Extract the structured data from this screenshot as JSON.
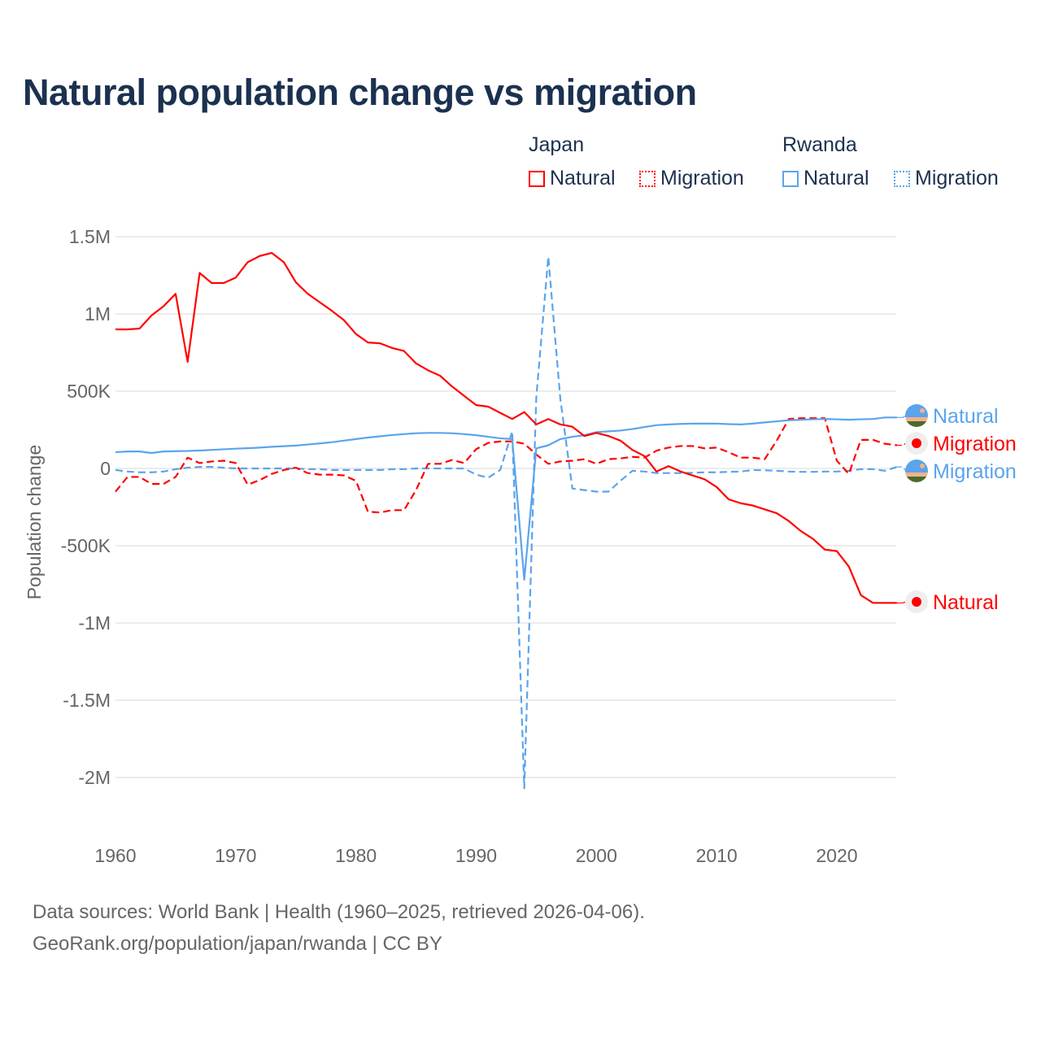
{
  "chart_data": {
    "type": "line",
    "title": "Natural population change vs migration",
    "ylabel": "Population change",
    "xlabel": "",
    "xlim": [
      1960,
      2025
    ],
    "ylim": [
      -2200000,
      1550000
    ],
    "x_ticks": [
      1960,
      1970,
      1980,
      1990,
      2000,
      2010,
      2020
    ],
    "x_tick_labels": [
      "1960",
      "1970",
      "1980",
      "1990",
      "2000",
      "2010",
      "2020"
    ],
    "y_ticks": [
      1500000,
      1000000,
      500000,
      0,
      -500000,
      -1000000,
      -1500000,
      -2000000
    ],
    "y_tick_labels": [
      "1.5M",
      "1M",
      "500K",
      "0",
      "-500K",
      "-1M",
      "-1.5M",
      "-2M"
    ],
    "grid": true,
    "legend_groups": [
      {
        "name": "Japan",
        "entries": [
          "Natural",
          "Migration"
        ]
      },
      {
        "name": "Rwanda",
        "entries": [
          "Natural",
          "Migration"
        ]
      }
    ],
    "legend_placement": "top-right",
    "x": [
      1960,
      1961,
      1962,
      1963,
      1964,
      1965,
      1966,
      1967,
      1968,
      1969,
      1970,
      1971,
      1972,
      1973,
      1974,
      1975,
      1976,
      1977,
      1978,
      1979,
      1980,
      1981,
      1982,
      1983,
      1984,
      1985,
      1986,
      1987,
      1988,
      1989,
      1990,
      1991,
      1992,
      1993,
      1994,
      1995,
      1996,
      1997,
      1998,
      1999,
      2000,
      2001,
      2002,
      2003,
      2004,
      2005,
      2006,
      2007,
      2008,
      2009,
      2010,
      2011,
      2012,
      2013,
      2014,
      2015,
      2016,
      2017,
      2018,
      2019,
      2020,
      2021,
      2022,
      2023,
      2024,
      2025
    ],
    "series": [
      {
        "name": "Japan Natural",
        "country": "Japan",
        "label": "Natural",
        "color": "#ff0000",
        "dash": false,
        "values": [
          900000,
          900000,
          905000,
          990000,
          1050000,
          1130000,
          690000,
          1265000,
          1200000,
          1200000,
          1235000,
          1335000,
          1375000,
          1395000,
          1335000,
          1205000,
          1130000,
          1075000,
          1020000,
          960000,
          870000,
          815000,
          810000,
          780000,
          760000,
          680000,
          635000,
          600000,
          530000,
          470000,
          410000,
          400000,
          360000,
          320000,
          365000,
          285000,
          320000,
          285000,
          270000,
          210000,
          230000,
          210000,
          180000,
          120000,
          80000,
          -20000,
          15000,
          -20000,
          -45000,
          -70000,
          -120000,
          -200000,
          -225000,
          -240000,
          -265000,
          -290000,
          -340000,
          -405000,
          -455000,
          -525000,
          -535000,
          -635000,
          -820000,
          -870000,
          -870000,
          -870000
        ]
      },
      {
        "name": "Japan Migration",
        "country": "Japan",
        "label": "Migration",
        "color": "#ff0000",
        "dash": true,
        "values": [
          -150000,
          -55000,
          -55000,
          -100000,
          -100000,
          -55000,
          70000,
          35000,
          45000,
          50000,
          35000,
          -105000,
          -75000,
          -35000,
          -10000,
          5000,
          -30000,
          -40000,
          -40000,
          -45000,
          -80000,
          -280000,
          -285000,
          -270000,
          -270000,
          -140000,
          30000,
          30000,
          55000,
          35000,
          125000,
          165000,
          175000,
          175000,
          160000,
          90000,
          30000,
          45000,
          50000,
          60000,
          30000,
          60000,
          65000,
          75000,
          70000,
          115000,
          135000,
          145000,
          145000,
          130000,
          135000,
          105000,
          70000,
          70000,
          60000,
          180000,
          320000,
          325000,
          325000,
          325000,
          50000,
          -35000,
          185000,
          185000,
          160000,
          150000
        ]
      },
      {
        "name": "Rwanda Natural",
        "country": "Rwanda",
        "label": "Natural",
        "color": "#5ba4ec",
        "dash": false,
        "values": [
          105000,
          110000,
          110000,
          100000,
          110000,
          112000,
          113000,
          116000,
          120000,
          124000,
          128000,
          131000,
          135000,
          140000,
          144000,
          148000,
          155000,
          162000,
          170000,
          180000,
          190000,
          200000,
          208000,
          216000,
          222000,
          228000,
          230000,
          230000,
          228000,
          222000,
          215000,
          205000,
          195000,
          190000,
          -720000,
          130000,
          150000,
          190000,
          205000,
          215000,
          235000,
          240000,
          245000,
          255000,
          268000,
          280000,
          285000,
          288000,
          290000,
          290000,
          290000,
          287000,
          285000,
          290000,
          298000,
          305000,
          312000,
          315000,
          318000,
          320000,
          318000,
          315000,
          318000,
          320000,
          330000,
          330000
        ]
      },
      {
        "name": "Rwanda Migration",
        "country": "Rwanda",
        "label": "Migration",
        "color": "#5ba4ec",
        "dash": true,
        "values": [
          -10000,
          -20000,
          -25000,
          -25000,
          -20000,
          -5000,
          5000,
          10000,
          10000,
          5000,
          0,
          0,
          0,
          0,
          0,
          0,
          -5000,
          -5000,
          -10000,
          -10000,
          -10000,
          -10000,
          -10000,
          -5000,
          -5000,
          0,
          0,
          0,
          0,
          0,
          -40000,
          -60000,
          -10000,
          240000,
          -2070000,
          460000,
          1370000,
          450000,
          -130000,
          -140000,
          -150000,
          -150000,
          -80000,
          -15000,
          -20000,
          -30000,
          -30000,
          -30000,
          -28000,
          -25000,
          -25000,
          -22000,
          -20000,
          -10000,
          -12000,
          -15000,
          -20000,
          -22000,
          -22000,
          -20000,
          -20000,
          -15000,
          -5000,
          -5000,
          -15000,
          10000
        ]
      }
    ],
    "end_labels": [
      {
        "text": "Natural",
        "series": "Rwanda Natural"
      },
      {
        "text": "Migration",
        "series": "Japan Migration"
      },
      {
        "text": "Migration",
        "series": "Rwanda Migration"
      },
      {
        "text": "Natural",
        "series": "Japan Natural"
      }
    ]
  },
  "legend": {
    "japan": "Japan",
    "rwanda": "Rwanda",
    "natural": "Natural",
    "migration": "Migration"
  },
  "footer": {
    "line1": "Data sources: World Bank | Health (1960–2025, retrieved 2026-04-06).",
    "line2": "GeoRank.org/population/japan/rwanda | CC BY"
  },
  "colors": {
    "japan": "#ff0000",
    "rwanda": "#5ba4ec",
    "title": "#1b3150"
  }
}
